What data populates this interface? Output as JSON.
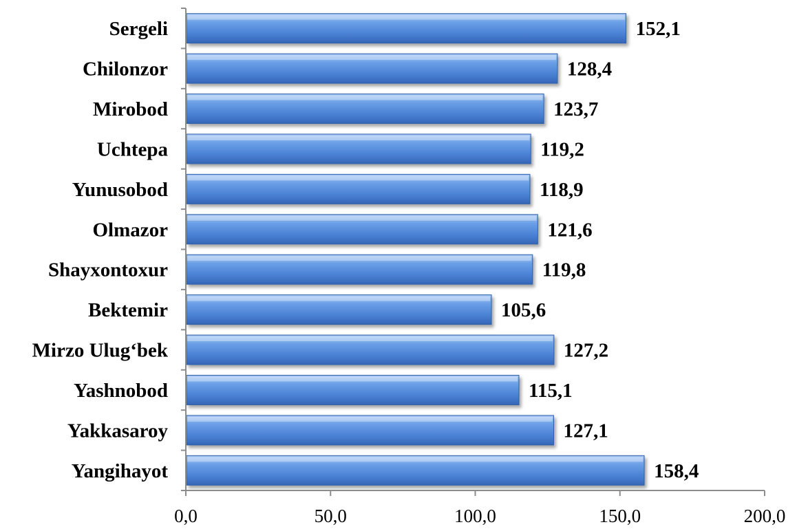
{
  "chart_data": {
    "type": "bar",
    "orientation": "horizontal",
    "categories": [
      "Sergeli",
      "Chilonzor",
      "Mirobod",
      "Uchtepa",
      "Yunusobod",
      "Olmazor",
      "Shayxontoxur",
      "Bektemir",
      "Mirzo Ulug‘bek",
      "Yashnobod",
      "Yakkasaroy",
      "Yangihayot"
    ],
    "values": [
      152.1,
      128.4,
      123.7,
      119.2,
      118.9,
      121.6,
      119.8,
      105.6,
      127.2,
      115.1,
      127.1,
      158.4
    ],
    "value_labels": [
      "152,1",
      "128,4",
      "123,7",
      "119,2",
      "118,9",
      "121,6",
      "119,8",
      "105,6",
      "127,2",
      "115,1",
      "127,1",
      "158,4"
    ],
    "ticks": [
      0,
      50,
      100,
      150,
      200
    ],
    "tick_labels": [
      "0,0",
      "50,0",
      "100,0",
      "150,0",
      "200,0"
    ],
    "xlim": [
      0,
      200
    ],
    "grid": false,
    "legend": "none",
    "bar_color": "#4f86d6",
    "title": "",
    "xlabel": "",
    "ylabel": ""
  }
}
